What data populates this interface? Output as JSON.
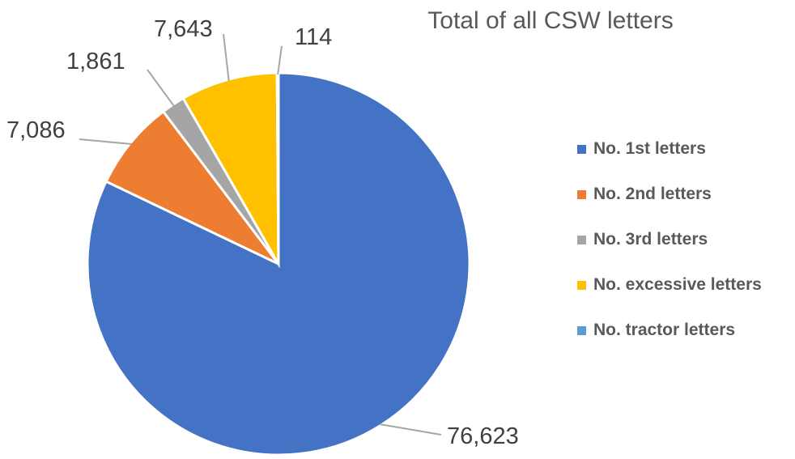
{
  "chart_data": {
    "type": "pie",
    "title": "Total of all CSW letters",
    "categories": [
      "No. 1st letters",
      "No. 2nd letters",
      "No. 3rd letters",
      "No. excessive letters",
      "No. tractor letters"
    ],
    "values": [
      76623,
      7086,
      1861,
      7643,
      114
    ],
    "value_labels": [
      "76,623",
      "7,086",
      "1,861",
      "7,643",
      "114"
    ],
    "colors": [
      "#4472C4",
      "#ED7D31",
      "#A5A5A5",
      "#FFC000",
      "#5B9BD5"
    ],
    "start_angle_deg": 0,
    "direction": "clockwise",
    "legend_position": "right"
  }
}
